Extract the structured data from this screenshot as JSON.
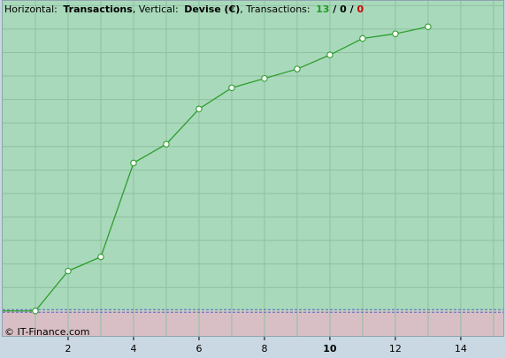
{
  "header": {
    "horizontal_label": "Horizontal:",
    "horizontal_value": "Transactions",
    "vertical_label": ", Vertical:",
    "vertical_value": "Devise (€)",
    "transactions_label": ", Transactions:",
    "count_total": "13",
    "sep1": " / ",
    "count_zero": "0",
    "sep2": " / ",
    "count_neg": "0"
  },
  "watermark": "© IT-Finance.com",
  "colors": {
    "profit_zone": "#a9d9bb",
    "loss_zone": "#d8bfc6",
    "line": "#2e9e2e",
    "total_count": "#1e9e1e",
    "neg_count": "#cc0000"
  },
  "chart_data": {
    "type": "line",
    "x": [
      0,
      1,
      2,
      3,
      4,
      5,
      6,
      7,
      8,
      9,
      10,
      11,
      12,
      13
    ],
    "y": [
      0,
      0,
      1.7,
      2.3,
      6.3,
      7.1,
      8.6,
      9.5,
      9.9,
      10.3,
      10.9,
      11.6,
      11.8,
      12.1
    ],
    "markers_from_index": 1,
    "xlim": [
      0,
      15.3
    ],
    "ylim": [
      -1.1,
      13.2
    ],
    "x_ticks": [
      2,
      4,
      6,
      8,
      10,
      12,
      14
    ],
    "x_tick_labels": [
      "2",
      "4",
      "6",
      "8",
      "10",
      "12",
      "14"
    ],
    "bold_tick": 10,
    "y_tick_labels_shown": false,
    "grid": true,
    "legend": "none"
  }
}
